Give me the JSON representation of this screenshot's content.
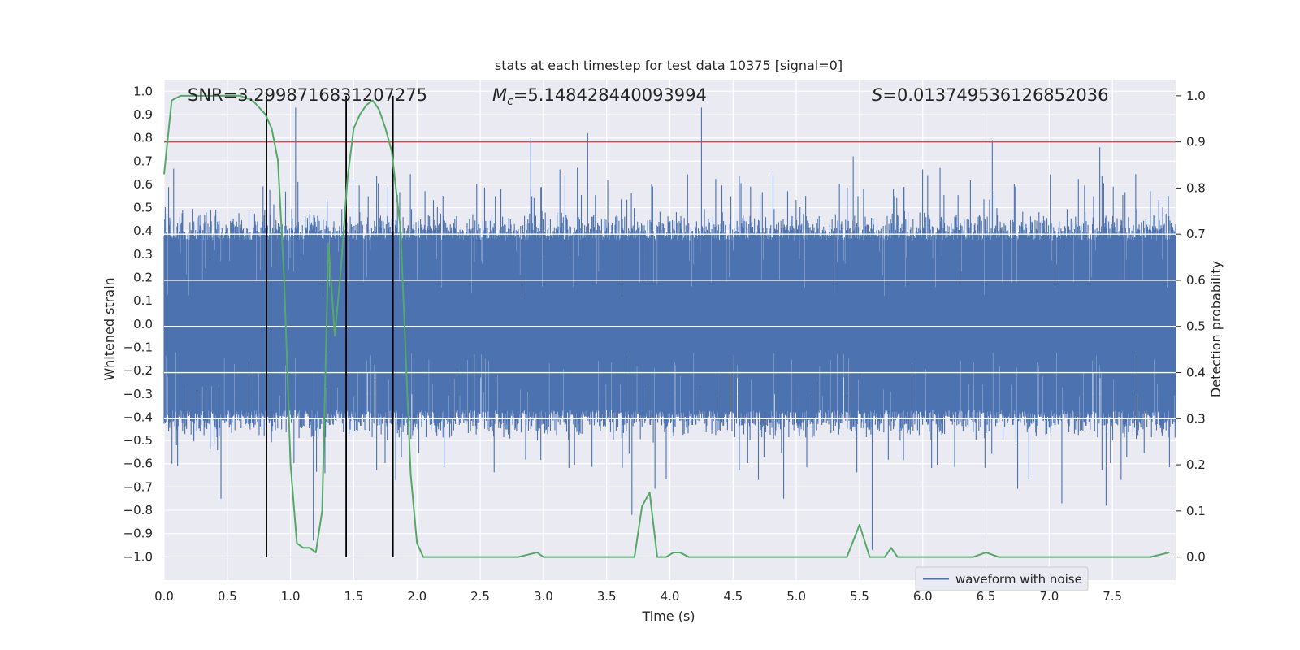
{
  "chart_data": {
    "type": "line",
    "title": "stats at each timestep for test data 10375 [signal=0]",
    "xlabel": "Time (s)",
    "ylabel_left": "Whitened strain",
    "ylabel_right": "Detection probability",
    "xlim": [
      0.0,
      8.0
    ],
    "ylim_left": [
      -1.1,
      1.05
    ],
    "ylim_right": [
      -0.05,
      1.035
    ],
    "grid": true,
    "x_ticks": [
      "0.0",
      "0.5",
      "1.0",
      "1.5",
      "2.0",
      "2.5",
      "3.0",
      "3.5",
      "4.0",
      "4.5",
      "5.0",
      "5.5",
      "6.0",
      "6.5",
      "7.0",
      "7.5"
    ],
    "y_left_ticks": [
      "1.0",
      "0.9",
      "0.8",
      "0.7",
      "0.6",
      "0.5",
      "0.4",
      "0.3",
      "0.2",
      "0.1",
      "0.0",
      "−0.1",
      "−0.2",
      "−0.3",
      "−0.4",
      "−0.5",
      "−0.6",
      "−0.7",
      "−0.8",
      "−0.9",
      "−1.0"
    ],
    "y_right_ticks": [
      "1.0",
      "0.9",
      "0.8",
      "0.7",
      "0.6",
      "0.5",
      "0.4",
      "0.3",
      "0.2",
      "0.1",
      "0.0"
    ],
    "annotations": {
      "snr": "SNR=3.2998716831207275",
      "mc_symbol": "M",
      "mc_sub": "c",
      "mc_value": "=5.148428440093994",
      "s_symbol": "S",
      "s_value": "=0.013749536126852036"
    },
    "series": [
      {
        "name": "waveform with noise",
        "axis": "left",
        "color": "#4c72b0",
        "x_range": [
          0.0,
          8.0
        ],
        "band_envelope": {
          "positive_peaks": [
            [
              1.04,
              0.93
            ],
            [
              4.25,
              0.93
            ],
            [
              3.35,
              0.82
            ],
            [
              6.55,
              0.79
            ],
            [
              2.9,
              0.8
            ],
            [
              5.45,
              0.72
            ],
            [
              7.4,
              0.76
            ]
          ],
          "negative_peaks": [
            [
              0.45,
              -0.75
            ],
            [
              1.18,
              -0.93
            ],
            [
              3.7,
              -0.82
            ],
            [
              4.9,
              -0.75
            ],
            [
              5.6,
              -0.97
            ],
            [
              7.1,
              -0.77
            ],
            [
              7.45,
              -0.78
            ]
          ]
        }
      },
      {
        "name": "",
        "axis": "right",
        "color": "#55a868",
        "x": [
          0.0,
          0.06,
          0.13,
          0.2,
          0.3,
          0.4,
          0.5,
          0.6,
          0.7,
          0.8,
          0.85,
          0.9,
          0.95,
          1.0,
          1.05,
          1.1,
          1.15,
          1.2,
          1.25,
          1.3,
          1.35,
          1.4,
          1.45,
          1.5,
          1.55,
          1.6,
          1.65,
          1.7,
          1.75,
          1.8,
          1.87,
          1.95,
          2.0,
          2.05,
          2.2,
          2.5,
          2.8,
          2.95,
          3.0,
          3.2,
          3.4,
          3.55,
          3.65,
          3.72,
          3.78,
          3.84,
          3.9,
          3.97,
          4.03,
          4.08,
          4.15,
          4.2,
          4.3,
          4.5,
          4.7,
          4.9,
          5.1,
          5.3,
          5.4,
          5.5,
          5.58,
          5.65,
          5.7,
          5.75,
          5.8,
          6.0,
          6.2,
          6.4,
          6.5,
          6.6,
          6.7,
          6.8,
          6.9,
          7.0,
          7.2,
          7.5,
          7.8,
          7.95
        ],
        "y": [
          0.83,
          0.99,
          1.0,
          1.0,
          1.0,
          1.0,
          1.0,
          1.0,
          0.99,
          0.96,
          0.93,
          0.86,
          0.6,
          0.2,
          0.03,
          0.02,
          0.02,
          0.01,
          0.1,
          0.68,
          0.48,
          0.63,
          0.82,
          0.93,
          0.96,
          0.98,
          0.99,
          0.97,
          0.93,
          0.88,
          0.71,
          0.18,
          0.03,
          0.0,
          0.0,
          0.0,
          0.0,
          0.01,
          0.0,
          0.0,
          0.0,
          0.0,
          0.0,
          0.0,
          0.11,
          0.14,
          0.0,
          0.0,
          0.01,
          0.01,
          0.0,
          0.0,
          0.0,
          0.0,
          0.0,
          0.0,
          0.0,
          0.0,
          0.0,
          0.07,
          0.0,
          0.0,
          0.0,
          0.02,
          0.0,
          0.0,
          0.0,
          0.0,
          0.01,
          0.0,
          0.0,
          0.0,
          0.0,
          0.0,
          0.0,
          0.0,
          0.0,
          0.01
        ]
      }
    ],
    "threshold": {
      "axis": "right",
      "y": 0.9,
      "color": "#c44e52"
    },
    "vertical_lines": {
      "x": [
        0.81,
        1.44,
        1.81
      ],
      "color": "#000000"
    },
    "legend": {
      "label": "waveform with noise",
      "placement": "lower-right"
    }
  }
}
